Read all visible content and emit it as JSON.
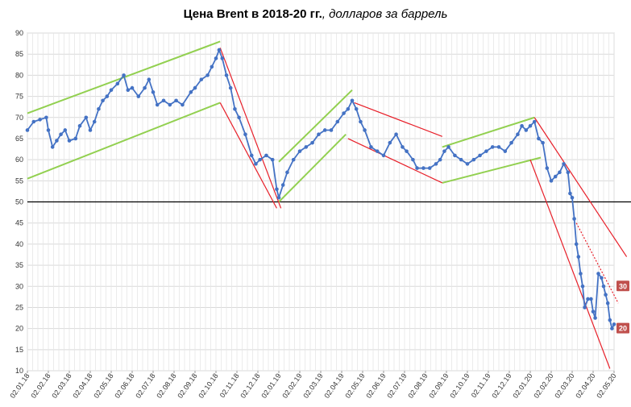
{
  "title": {
    "bold": "Цена Brent в 2018-20 гг.",
    "rest": ", долларов за баррель"
  },
  "chart_data": {
    "type": "line",
    "ylim": [
      10,
      90
    ],
    "yticks": [
      10,
      15,
      20,
      25,
      30,
      35,
      40,
      45,
      50,
      55,
      60,
      65,
      70,
      75,
      80,
      85,
      90
    ],
    "x_tick_labels": [
      "02.01.18",
      "02.02.18",
      "02.03.18",
      "02.04.18",
      "02.05.18",
      "02.06.18",
      "02.07.18",
      "02.08.18",
      "02.09.18",
      "02.10.18",
      "02.11.18",
      "02.12.18",
      "02.01.19",
      "02.02.19",
      "02.03.19",
      "02.04.19",
      "02.05.19",
      "02.06.19",
      "02.07.19",
      "02.08.19",
      "02.09.19",
      "02.10.19",
      "02.11.19",
      "02.12.19",
      "02.01.20",
      "02.02.20",
      "02.03.20",
      "02.04.20",
      "02.05.20"
    ],
    "grid": true,
    "reference_line": 50,
    "series": [
      {
        "color": "#4472c4",
        "points": [
          [
            0,
            67
          ],
          [
            0.3,
            69
          ],
          [
            0.6,
            69.5
          ],
          [
            0.9,
            70
          ],
          [
            1.0,
            67
          ],
          [
            1.2,
            63
          ],
          [
            1.4,
            64.5
          ],
          [
            1.6,
            66
          ],
          [
            1.8,
            67
          ],
          [
            2.0,
            64.5
          ],
          [
            2.3,
            65
          ],
          [
            2.5,
            68
          ],
          [
            2.8,
            70
          ],
          [
            3.0,
            67
          ],
          [
            3.2,
            69
          ],
          [
            3.4,
            72
          ],
          [
            3.6,
            74
          ],
          [
            3.8,
            75
          ],
          [
            4.0,
            76.5
          ],
          [
            4.3,
            78
          ],
          [
            4.6,
            80
          ],
          [
            4.8,
            76.5
          ],
          [
            5.0,
            77
          ],
          [
            5.3,
            75
          ],
          [
            5.6,
            77
          ],
          [
            5.8,
            79
          ],
          [
            6.0,
            76
          ],
          [
            6.2,
            73
          ],
          [
            6.5,
            74
          ],
          [
            6.8,
            73
          ],
          [
            7.1,
            74
          ],
          [
            7.4,
            73
          ],
          [
            7.8,
            76
          ],
          [
            8.0,
            77
          ],
          [
            8.3,
            79
          ],
          [
            8.6,
            80
          ],
          [
            8.8,
            82
          ],
          [
            9.0,
            84
          ],
          [
            9.15,
            86
          ],
          [
            9.3,
            84
          ],
          [
            9.5,
            80
          ],
          [
            9.7,
            77
          ],
          [
            9.9,
            72
          ],
          [
            10.1,
            70
          ],
          [
            10.4,
            66
          ],
          [
            10.7,
            61
          ],
          [
            10.9,
            59
          ],
          [
            11.1,
            60
          ],
          [
            11.4,
            61
          ],
          [
            11.7,
            60
          ],
          [
            11.9,
            53
          ],
          [
            12.0,
            51
          ],
          [
            12.2,
            54
          ],
          [
            12.4,
            57
          ],
          [
            12.7,
            60
          ],
          [
            13.0,
            62
          ],
          [
            13.3,
            63
          ],
          [
            13.6,
            64
          ],
          [
            13.9,
            66
          ],
          [
            14.2,
            67
          ],
          [
            14.5,
            67
          ],
          [
            14.8,
            69
          ],
          [
            15.1,
            71
          ],
          [
            15.3,
            72
          ],
          [
            15.5,
            74
          ],
          [
            15.7,
            72
          ],
          [
            15.9,
            69
          ],
          [
            16.1,
            67
          ],
          [
            16.4,
            63
          ],
          [
            16.7,
            62
          ],
          [
            17.0,
            61
          ],
          [
            17.3,
            64
          ],
          [
            17.6,
            66
          ],
          [
            17.9,
            63
          ],
          [
            18.1,
            62
          ],
          [
            18.4,
            60
          ],
          [
            18.6,
            58
          ],
          [
            18.9,
            58
          ],
          [
            19.2,
            58
          ],
          [
            19.5,
            59
          ],
          [
            19.7,
            60
          ],
          [
            19.9,
            62
          ],
          [
            20.1,
            63
          ],
          [
            20.4,
            61
          ],
          [
            20.7,
            60
          ],
          [
            21.0,
            59
          ],
          [
            21.3,
            60
          ],
          [
            21.6,
            61
          ],
          [
            21.9,
            62
          ],
          [
            22.2,
            63
          ],
          [
            22.5,
            63
          ],
          [
            22.8,
            62
          ],
          [
            23.1,
            64
          ],
          [
            23.4,
            66
          ],
          [
            23.6,
            68
          ],
          [
            23.8,
            67
          ],
          [
            24.0,
            68
          ],
          [
            24.2,
            69
          ],
          [
            24.4,
            65
          ],
          [
            24.6,
            64
          ],
          [
            24.8,
            58
          ],
          [
            25.0,
            55
          ],
          [
            25.2,
            56
          ],
          [
            25.4,
            57
          ],
          [
            25.6,
            59
          ],
          [
            25.8,
            57
          ],
          [
            25.9,
            52
          ],
          [
            26.0,
            51
          ],
          [
            26.1,
            46
          ],
          [
            26.2,
            40
          ],
          [
            26.3,
            37
          ],
          [
            26.4,
            33
          ],
          [
            26.5,
            30
          ],
          [
            26.6,
            25
          ],
          [
            26.75,
            27
          ],
          [
            26.9,
            27
          ],
          [
            27.0,
            24
          ],
          [
            27.1,
            22.5
          ],
          [
            27.25,
            33
          ],
          [
            27.4,
            32
          ],
          [
            27.5,
            30
          ],
          [
            27.6,
            28
          ],
          [
            27.7,
            26
          ],
          [
            27.8,
            22
          ],
          [
            27.9,
            20
          ],
          [
            28.0,
            21
          ]
        ]
      }
    ],
    "trend_lines": {
      "green": [
        [
          [
            0,
            71
          ],
          [
            9.2,
            88
          ]
        ],
        [
          [
            0,
            55.5
          ],
          [
            9.2,
            73.5
          ]
        ],
        [
          [
            12.0,
            59.5
          ],
          [
            15.5,
            76.5
          ]
        ],
        [
          [
            12.0,
            50
          ],
          [
            15.2,
            66
          ]
        ],
        [
          [
            19.8,
            63
          ],
          [
            24.2,
            70
          ]
        ],
        [
          [
            19.8,
            54.5
          ],
          [
            24.5,
            60.5
          ]
        ]
      ],
      "red": [
        [
          [
            9.2,
            86.5
          ],
          [
            12.1,
            48.5
          ]
        ],
        [
          [
            9.2,
            73.5
          ],
          [
            11.9,
            48.5
          ]
        ],
        [
          [
            15.6,
            73.5
          ],
          [
            19.8,
            65.5
          ]
        ],
        [
          [
            15.3,
            65
          ],
          [
            19.8,
            54.5
          ]
        ],
        [
          [
            24.2,
            70
          ],
          [
            28.6,
            37
          ]
        ],
        [
          [
            24.0,
            60
          ],
          [
            27.8,
            10.5
          ]
        ]
      ],
      "red_dotted": [
        [
          [
            26.2,
            45
          ],
          [
            28.2,
            26
          ]
        ]
      ]
    },
    "annotations": [
      {
        "text": "30",
        "value": 30
      },
      {
        "text": "20",
        "value": 20
      }
    ]
  }
}
